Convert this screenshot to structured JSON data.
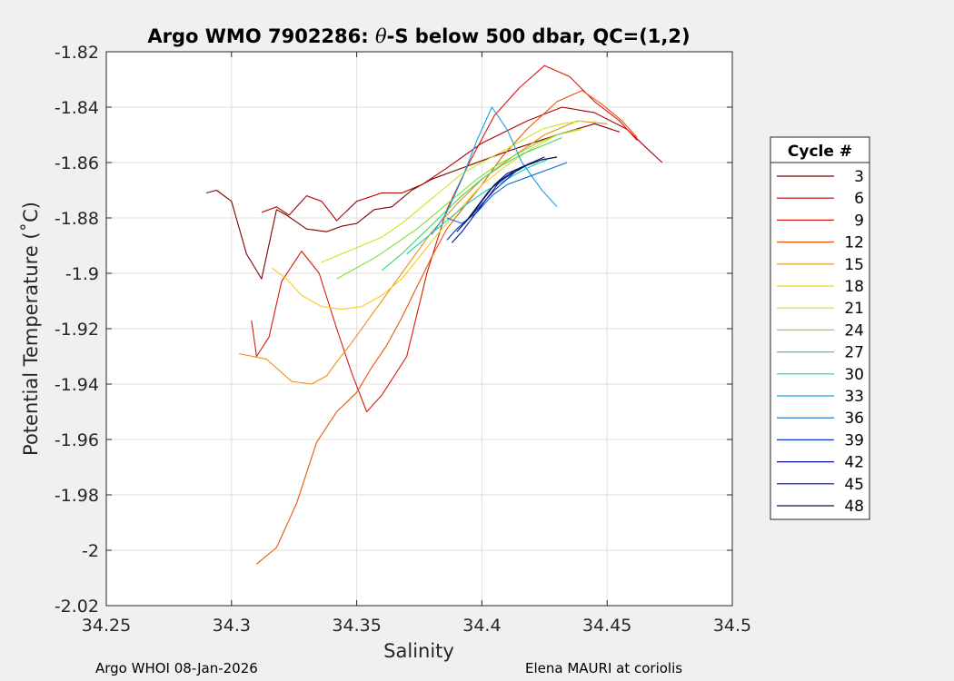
{
  "chart_data": {
    "type": "line",
    "title_parts": {
      "prefix": "Argo WMO 7902286: ",
      "symbol": "θ",
      "suffix": "-S below 500 dbar,  QC=(1,2)"
    },
    "xlabel": "Salinity",
    "ylabel": "Potential Temperature (˚C)",
    "xlim": [
      34.25,
      34.5
    ],
    "ylim": [
      -2.02,
      -1.82
    ],
    "grid": true,
    "x_ticks": [
      34.25,
      34.3,
      34.35,
      34.4,
      34.45,
      34.5
    ],
    "x_tick_labels": [
      "34.25",
      "34.3",
      "34.35",
      "34.4",
      "34.45",
      "34.5"
    ],
    "y_ticks": [
      -1.82,
      -1.84,
      -1.86,
      -1.88,
      -1.9,
      -1.92,
      -1.94,
      -1.96,
      -1.98,
      -2.0,
      -2.02
    ],
    "y_tick_labels": [
      "-1.82",
      "-1.84",
      "-1.86",
      "-1.88",
      "-1.9",
      "-1.92",
      "-1.94",
      "-1.96",
      "-1.98",
      "-2",
      "-2.02"
    ],
    "legend": {
      "title": "Cycle #",
      "position": "outside-right",
      "entries": [
        {
          "label": "3",
          "color": "#7f0000"
        },
        {
          "label": "6",
          "color": "#b30000"
        },
        {
          "label": "9",
          "color": "#d81a0a"
        },
        {
          "label": "12",
          "color": "#e8560b"
        },
        {
          "label": "15",
          "color": "#e89010"
        },
        {
          "label": "18",
          "color": "#f2cf1a"
        },
        {
          "label": "21",
          "color": "#c8e61c"
        },
        {
          "label": "24",
          "color": "#7fe032"
        },
        {
          "label": "27",
          "color": "#3ad864"
        },
        {
          "label": "30",
          "color": "#16d2b0"
        },
        {
          "label": "33",
          "color": "#1aa2e0"
        },
        {
          "label": "36",
          "color": "#0b6ed0"
        },
        {
          "label": "39",
          "color": "#0833c2"
        },
        {
          "label": "42",
          "color": "#0710a8"
        },
        {
          "label": "45",
          "color": "#06106e"
        },
        {
          "label": "48",
          "color": "#0a1450"
        }
      ]
    },
    "series": [
      {
        "name": "3",
        "color": "#7f0000",
        "x": [
          34.29,
          34.294,
          34.3,
          34.306,
          34.312,
          34.318,
          34.322,
          34.33,
          34.338,
          34.344,
          34.35,
          34.357,
          34.364,
          34.372,
          34.38,
          34.392,
          34.41,
          34.43,
          34.445,
          34.455
        ],
        "y": [
          -1.871,
          -1.87,
          -1.874,
          -1.893,
          -1.902,
          -1.877,
          -1.879,
          -1.884,
          -1.885,
          -1.883,
          -1.882,
          -1.877,
          -1.876,
          -1.87,
          -1.866,
          -1.862,
          -1.856,
          -1.85,
          -1.846,
          -1.849
        ]
      },
      {
        "name": "6",
        "color": "#b30000",
        "x": [
          34.312,
          34.318,
          34.323,
          34.33,
          34.336,
          34.342,
          34.35,
          34.36,
          34.368,
          34.376,
          34.386,
          34.4,
          34.418,
          34.432,
          34.445,
          34.458,
          34.466,
          34.472
        ],
        "y": [
          -1.878,
          -1.876,
          -1.879,
          -1.872,
          -1.874,
          -1.881,
          -1.874,
          -1.871,
          -1.871,
          -1.868,
          -1.862,
          -1.853,
          -1.845,
          -1.84,
          -1.842,
          -1.848,
          -1.855,
          -1.86
        ]
      },
      {
        "name": "9",
        "color": "#d81a0a",
        "x": [
          34.308,
          34.31,
          34.315,
          34.32,
          34.328,
          34.335,
          34.342,
          34.348,
          34.354,
          34.36,
          34.37,
          34.378,
          34.386,
          34.395,
          34.405,
          34.415,
          34.425,
          34.435,
          34.445,
          34.455,
          34.462
        ],
        "y": [
          -1.917,
          -1.93,
          -1.923,
          -1.903,
          -1.892,
          -1.9,
          -1.92,
          -1.936,
          -1.95,
          -1.944,
          -1.93,
          -1.9,
          -1.877,
          -1.86,
          -1.843,
          -1.833,
          -1.825,
          -1.829,
          -1.838,
          -1.845,
          -1.852
        ]
      },
      {
        "name": "12",
        "color": "#e8560b",
        "x": [
          34.31,
          34.318,
          34.326,
          34.334,
          34.342,
          34.35,
          34.356,
          34.362,
          34.368,
          34.374,
          34.38,
          34.386,
          34.392,
          34.4,
          34.408,
          34.418,
          34.43,
          34.44,
          34.448,
          34.456,
          34.462
        ],
        "y": [
          -2.005,
          -1.999,
          -1.983,
          -1.961,
          -1.95,
          -1.943,
          -1.934,
          -1.926,
          -1.916,
          -1.905,
          -1.894,
          -1.884,
          -1.877,
          -1.868,
          -1.858,
          -1.848,
          -1.838,
          -1.834,
          -1.839,
          -1.845,
          -1.851
        ]
      },
      {
        "name": "15",
        "color": "#e89010",
        "x": [
          34.303,
          34.314,
          34.324,
          34.332,
          34.338,
          34.342,
          34.348,
          34.356,
          34.364,
          34.372,
          34.38,
          34.39,
          34.4,
          34.412,
          34.425,
          34.438,
          34.45
        ],
        "y": [
          -1.929,
          -1.931,
          -1.939,
          -1.94,
          -1.937,
          -1.932,
          -1.925,
          -1.915,
          -1.905,
          -1.895,
          -1.885,
          -1.875,
          -1.866,
          -1.858,
          -1.85,
          -1.845,
          -1.846
        ]
      },
      {
        "name": "18",
        "color": "#f2cf1a",
        "x": [
          34.316,
          34.322,
          34.328,
          34.336,
          34.344,
          34.352,
          34.36,
          34.368,
          34.376,
          34.384,
          34.392,
          34.4,
          34.41,
          34.42,
          34.43,
          34.44
        ],
        "y": [
          -1.898,
          -1.902,
          -1.908,
          -1.912,
          -1.913,
          -1.912,
          -1.908,
          -1.902,
          -1.893,
          -1.884,
          -1.876,
          -1.868,
          -1.861,
          -1.855,
          -1.85,
          -1.848
        ]
      },
      {
        "name": "21",
        "color": "#c8e61c",
        "x": [
          34.336,
          34.344,
          34.352,
          34.36,
          34.368,
          34.376,
          34.384,
          34.392,
          34.4,
          34.408,
          34.416,
          34.424,
          34.432,
          34.44
        ],
        "y": [
          -1.896,
          -1.893,
          -1.89,
          -1.887,
          -1.882,
          -1.876,
          -1.87,
          -1.864,
          -1.86,
          -1.856,
          -1.852,
          -1.848,
          -1.846,
          -1.845
        ]
      },
      {
        "name": "24",
        "color": "#7fe032",
        "x": [
          34.342,
          34.35,
          34.358,
          34.366,
          34.374,
          34.382,
          34.39,
          34.398,
          34.406,
          34.414,
          34.422,
          34.43,
          34.438
        ],
        "y": [
          -1.902,
          -1.898,
          -1.894,
          -1.889,
          -1.884,
          -1.878,
          -1.872,
          -1.866,
          -1.861,
          -1.857,
          -1.853,
          -1.85,
          -1.848
        ]
      },
      {
        "name": "27",
        "color": "#3ad864",
        "x": [
          34.36,
          34.368,
          34.376,
          34.384,
          34.392,
          34.4,
          34.408,
          34.416,
          34.424,
          34.432
        ],
        "y": [
          -1.899,
          -1.893,
          -1.886,
          -1.879,
          -1.872,
          -1.866,
          -1.861,
          -1.857,
          -1.854,
          -1.851
        ]
      },
      {
        "name": "30",
        "color": "#16d2b0",
        "x": [
          34.37,
          34.378,
          34.386,
          34.394,
          34.402,
          34.41,
          34.418,
          34.426
        ],
        "y": [
          -1.893,
          -1.887,
          -1.881,
          -1.875,
          -1.87,
          -1.866,
          -1.862,
          -1.859
        ]
      },
      {
        "name": "33",
        "color": "#1aa2e0",
        "x": [
          34.38,
          34.386,
          34.392,
          34.398,
          34.404,
          34.41,
          34.416,
          34.424,
          34.43
        ],
        "y": [
          -1.886,
          -1.878,
          -1.866,
          -1.852,
          -1.84,
          -1.848,
          -1.86,
          -1.87,
          -1.876
        ]
      },
      {
        "name": "36",
        "color": "#0b6ed0",
        "x": [
          34.386,
          34.392,
          34.398,
          34.404,
          34.41,
          34.416,
          34.422,
          34.428,
          34.434
        ],
        "y": [
          -1.88,
          -1.882,
          -1.878,
          -1.872,
          -1.868,
          -1.866,
          -1.864,
          -1.862,
          -1.86
        ]
      },
      {
        "name": "39",
        "color": "#0833c2",
        "x": [
          34.386,
          34.39,
          34.395,
          34.4,
          34.405,
          34.41,
          34.415,
          34.42
        ],
        "y": [
          -1.888,
          -1.884,
          -1.88,
          -1.875,
          -1.87,
          -1.866,
          -1.862,
          -1.86
        ]
      },
      {
        "name": "42",
        "color": "#0710a8",
        "x": [
          34.388,
          34.392,
          34.397,
          34.402,
          34.407,
          34.412,
          34.418,
          34.424,
          34.43
        ],
        "y": [
          -1.889,
          -1.885,
          -1.879,
          -1.873,
          -1.867,
          -1.864,
          -1.861,
          -1.859,
          -1.858
        ]
      },
      {
        "name": "45",
        "color": "#06106e",
        "x": [
          34.39,
          34.395,
          34.4,
          34.405,
          34.41,
          34.415,
          34.42,
          34.425
        ],
        "y": [
          -1.885,
          -1.88,
          -1.874,
          -1.868,
          -1.864,
          -1.862,
          -1.86,
          -1.858
        ]
      },
      {
        "name": "48",
        "color": "#0a1450",
        "x": [
          34.393,
          34.398,
          34.403,
          34.408,
          34.413,
          34.418,
          34.424,
          34.43
        ],
        "y": [
          -1.882,
          -1.876,
          -1.87,
          -1.866,
          -1.863,
          -1.861,
          -1.859,
          -1.858
        ]
      }
    ]
  },
  "footer": {
    "left": "Argo WHOI 08-Jan-2026",
    "right": "Elena MAURI at coriolis"
  }
}
